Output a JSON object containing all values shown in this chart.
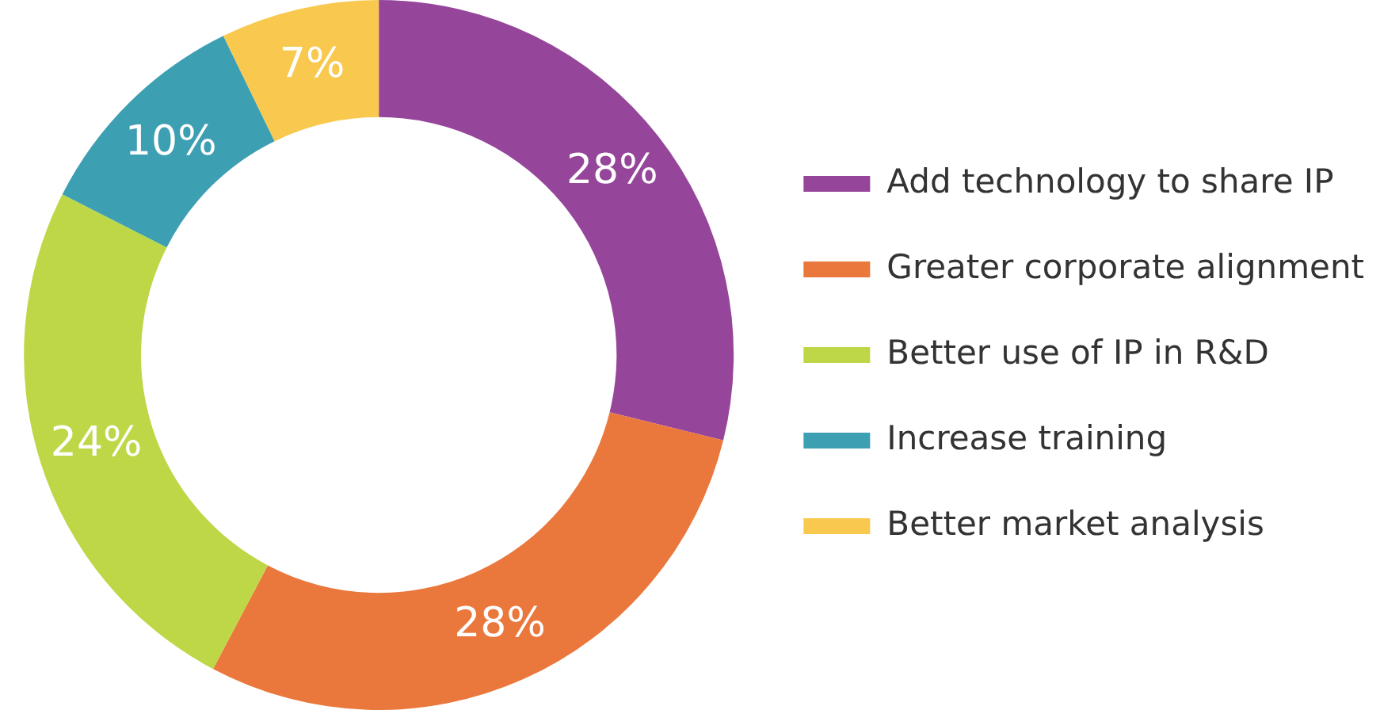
{
  "chart_data": {
    "type": "donut",
    "categories": [
      "Add technology to share IP",
      "Greater corporate alignment",
      "Better use of IP in R&D",
      "Increase training",
      "Better market analysis"
    ],
    "values": [
      28,
      28,
      24,
      10,
      7
    ],
    "value_labels": [
      "28%",
      "28%",
      "24%",
      "10%",
      "7%"
    ],
    "colors": [
      "#96469a",
      "#ea783c",
      "#bdd746",
      "#3d9fb2",
      "#f8c94e"
    ],
    "legend": "right"
  }
}
